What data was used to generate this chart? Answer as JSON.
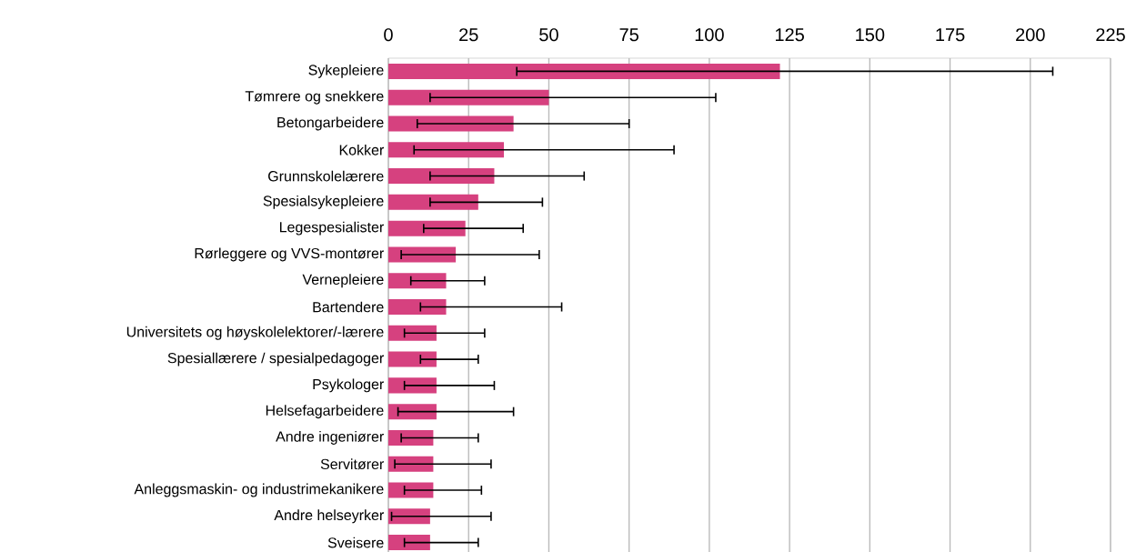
{
  "chart_data": {
    "type": "bar",
    "orientation": "horizontal",
    "categories": [
      "Sykepleiere",
      "Tømrere og snekkere",
      "Betongarbeidere",
      "Kokker",
      "Grunnskolelærere",
      "Spesialsykepleiere",
      "Legespesialister",
      "Rørleggere og VVS-montører",
      "Vernepleiere",
      "Bartendere",
      "Universitets og høyskolelektorer/-lærere",
      "Spesiallærere / spesialpedagoger",
      "Psykologer",
      "Helsefagarbeidere",
      "Andre ingeniører",
      "Servitører",
      "Anleggsmaskin- og industrimekanikere",
      "Andre helseyrker",
      "Sveisere"
    ],
    "values": [
      122,
      50,
      39,
      36,
      33,
      28,
      24,
      21,
      18,
      18,
      15,
      15,
      15,
      15,
      14,
      14,
      14,
      13,
      13
    ],
    "errors": [
      [
        40,
        207
      ],
      [
        13,
        102
      ],
      [
        9,
        75
      ],
      [
        8,
        89
      ],
      [
        13,
        61
      ],
      [
        13,
        48
      ],
      [
        11,
        42
      ],
      [
        4,
        47
      ],
      [
        7,
        30
      ],
      [
        10,
        54
      ],
      [
        5,
        30
      ],
      [
        10,
        28
      ],
      [
        5,
        33
      ],
      [
        3,
        39
      ],
      [
        4,
        28
      ],
      [
        2,
        32
      ],
      [
        5,
        29
      ],
      [
        1,
        32
      ],
      [
        5,
        28
      ]
    ],
    "color": "#d6417f",
    "xlim": [
      0,
      225
    ],
    "xticks": [
      0,
      25,
      50,
      75,
      100,
      125,
      150,
      175,
      200,
      225
    ],
    "grid": "x"
  }
}
